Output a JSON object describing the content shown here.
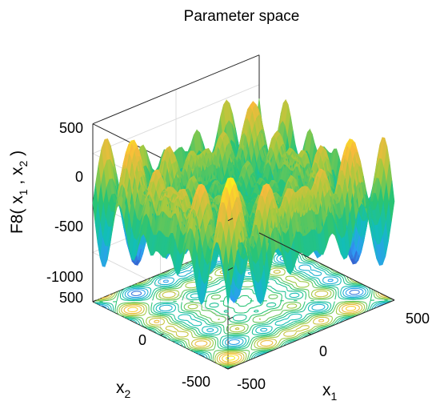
{
  "chart_data": {
    "type": "surface3d",
    "title": "Parameter space",
    "zlabel": {
      "text": "F8( x",
      "sub1": "1",
      "mid": " , x",
      "sub2": "2",
      "close": " )"
    },
    "xlabel": {
      "text": "x",
      "sub": "1"
    },
    "ylabel": {
      "text": "x",
      "sub": "2"
    },
    "xlim": [
      -500,
      500
    ],
    "ylim": [
      -500,
      500
    ],
    "zlim": [
      -1000,
      800
    ],
    "x_ticks": [
      -500,
      0,
      500
    ],
    "y_ticks": [
      -500,
      0,
      500
    ],
    "z_ticks": [
      -1000,
      -500,
      0,
      500
    ],
    "x_tick_labels": [
      "-500",
      "0",
      "500"
    ],
    "y_tick_labels": [
      "-500",
      "0",
      "500"
    ],
    "z_tick_labels": [
      "-1000",
      "-500",
      "0",
      "500"
    ],
    "grid": true,
    "contour_projection": "floor",
    "colormap": [
      "#3e26a8",
      "#2f9df4",
      "#12beb9",
      "#29c475",
      "#a7c93e",
      "#f8ba3c",
      "#f9fb15"
    ]
  }
}
